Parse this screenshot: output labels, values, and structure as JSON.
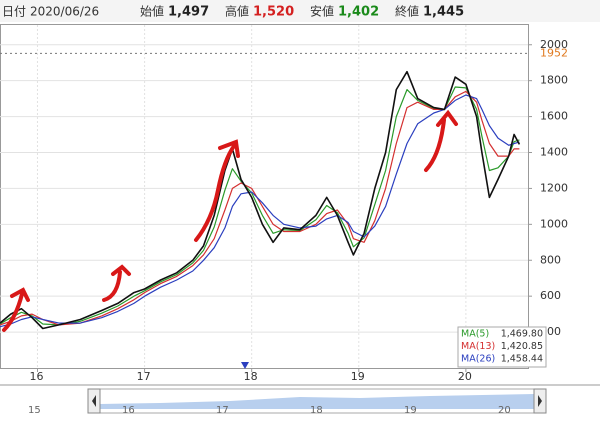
{
  "header": {
    "date_label": "日付",
    "date": "2020/06/26",
    "fields": [
      {
        "label": "始値",
        "value": "1,497",
        "color": "#222"
      },
      {
        "label": "高値",
        "value": "1,520",
        "color": "#d42020"
      },
      {
        "label": "安値",
        "value": "1,402",
        "color": "#1a8a1a"
      },
      {
        "label": "終値",
        "value": "1,445",
        "color": "#222"
      }
    ]
  },
  "chart_data": {
    "type": "line",
    "x": [
      2015.65,
      2015.75,
      2015.85,
      2015.95,
      2016.05,
      2016.2,
      2016.4,
      2016.6,
      2016.75,
      2016.9,
      2017.0,
      2017.15,
      2017.3,
      2017.45,
      2017.55,
      2017.65,
      2017.75,
      2017.82,
      2017.9,
      2018.0,
      2018.1,
      2018.2,
      2018.3,
      2018.45,
      2018.6,
      2018.7,
      2018.8,
      2018.9,
      2018.95,
      2019.05,
      2019.15,
      2019.25,
      2019.35,
      2019.45,
      2019.55,
      2019.7,
      2019.8,
      2019.9,
      2020.0,
      2020.1,
      2020.15,
      2020.22,
      2020.3,
      2020.4,
      2020.45,
      2020.5
    ],
    "values": [
      450,
      500,
      530,
      480,
      420,
      440,
      470,
      520,
      560,
      620,
      640,
      690,
      730,
      800,
      880,
      1050,
      1300,
      1420,
      1250,
      1150,
      1000,
      900,
      980,
      970,
      1050,
      1150,
      1050,
      900,
      830,
      950,
      1200,
      1400,
      1750,
      1850,
      1700,
      1650,
      1640,
      1820,
      1780,
      1600,
      1400,
      1150,
      1250,
      1380,
      1500,
      1445
    ],
    "color": "#111",
    "series": [
      {
        "name": "MA(5)",
        "color": "#2a9a2a",
        "last_value": {
          "value": 1469.8,
          "label": "1,469.80"
        },
        "values": [
          445,
          480,
          510,
          490,
          445,
          440,
          460,
          505,
          545,
          600,
          630,
          680,
          720,
          785,
          855,
          985,
          1190,
          1310,
          1240,
          1175,
          1050,
          950,
          970,
          965,
          1025,
          1105,
          1065,
          950,
          875,
          925,
          1110,
          1300,
          1600,
          1750,
          1690,
          1645,
          1640,
          1765,
          1760,
          1640,
          1490,
          1300,
          1315,
          1380,
          1460,
          1470
        ]
      },
      {
        "name": "MA(13)",
        "color": "#d43030",
        "last_value": {
          "value": 1420.85,
          "label": "1,420.85"
        },
        "values": [
          440,
          460,
          490,
          500,
          470,
          440,
          450,
          490,
          530,
          580,
          620,
          670,
          710,
          770,
          830,
          920,
          1080,
          1200,
          1230,
          1200,
          1100,
          1000,
          960,
          960,
          1000,
          1060,
          1080,
          1000,
          920,
          900,
          1020,
          1200,
          1450,
          1650,
          1680,
          1640,
          1640,
          1710,
          1740,
          1680,
          1580,
          1450,
          1380,
          1380,
          1420,
          1420
        ]
      },
      {
        "name": "MA(26)",
        "color": "#2b3fbf",
        "last_value": {
          "value": 1458.44,
          "label": "1,458.44"
        },
        "values": [
          430,
          445,
          470,
          485,
          470,
          450,
          450,
          480,
          515,
          560,
          600,
          650,
          690,
          740,
          800,
          870,
          980,
          1100,
          1170,
          1180,
          1120,
          1050,
          1000,
          980,
          990,
          1030,
          1050,
          1010,
          960,
          930,
          990,
          1100,
          1280,
          1450,
          1560,
          1620,
          1640,
          1690,
          1720,
          1700,
          1640,
          1550,
          1480,
          1440,
          1450,
          1458
        ]
      }
    ],
    "xlim": [
      2015.65,
      2020.58
    ],
    "xticks": [
      {
        "value": 2016,
        "label": "16"
      },
      {
        "value": 2017,
        "label": "17"
      },
      {
        "value": 2018,
        "label": "18"
      },
      {
        "value": 2019,
        "label": "19"
      },
      {
        "value": 2020,
        "label": "20"
      }
    ],
    "ylim": [
      200,
      2110
    ],
    "yticks": [
      400,
      600,
      800,
      1000,
      1200,
      1400,
      1600,
      1800,
      2000
    ],
    "reference_line": {
      "value": 1952,
      "color": "#e07a20"
    },
    "grid": true
  },
  "navigator_labels": [
    "15",
    "16",
    "17",
    "18",
    "19",
    "20"
  ]
}
